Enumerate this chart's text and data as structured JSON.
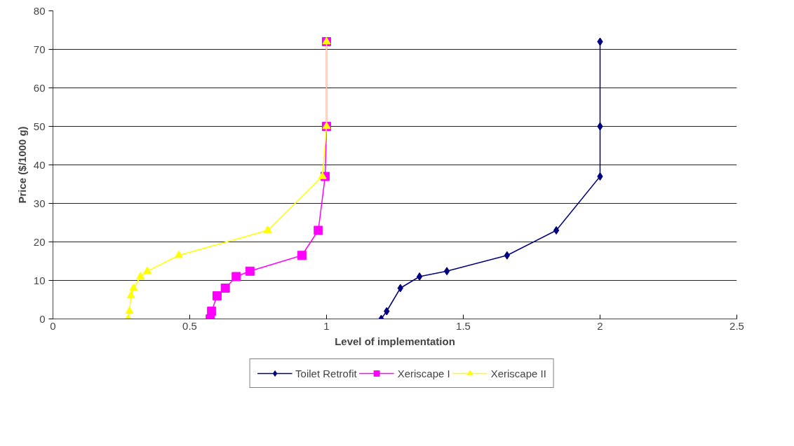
{
  "chart_data": {
    "type": "line",
    "xlabel": "Level of implementation",
    "ylabel": "Price ($/1000 g)",
    "xlim": [
      0,
      2.5
    ],
    "xticks": [
      0,
      0.5,
      1,
      1.5,
      2,
      2.5
    ],
    "ylim": [
      0,
      80
    ],
    "yticks": [
      0,
      10,
      20,
      30,
      40,
      50,
      60,
      70,
      80
    ],
    "grid": "y",
    "legend": "bottom",
    "line_style": "solid",
    "series": [
      {
        "name": "Toilet Retrofit",
        "color": "#000080",
        "marker": "diamond",
        "x": [
          1.2,
          1.22,
          1.27,
          1.34,
          1.44,
          1.66,
          1.84,
          2,
          2,
          2
        ],
        "values": [
          0,
          2,
          8,
          11,
          12.4,
          16.5,
          23,
          37,
          50,
          72
        ]
      },
      {
        "name": "Xeriscape I",
        "color": "#ff00ff",
        "marker": "square",
        "x": [
          0.575,
          0.58,
          0.6,
          0.63,
          0.67,
          0.72,
          0.91,
          0.97,
          0.995,
          1,
          1
        ],
        "values": [
          0,
          2,
          6,
          8,
          11,
          12.4,
          16.5,
          23,
          37,
          50,
          72
        ]
      },
      {
        "name": "Xeriscape II",
        "color": "#ffff00",
        "marker": "triangle",
        "x": [
          0.275,
          0.28,
          0.285,
          0.295,
          0.32,
          0.345,
          0.46,
          0.785,
          0.985,
          1,
          1
        ],
        "values": [
          0,
          2,
          6,
          8,
          11,
          12.4,
          16.5,
          23,
          37,
          50,
          72
        ]
      }
    ]
  }
}
